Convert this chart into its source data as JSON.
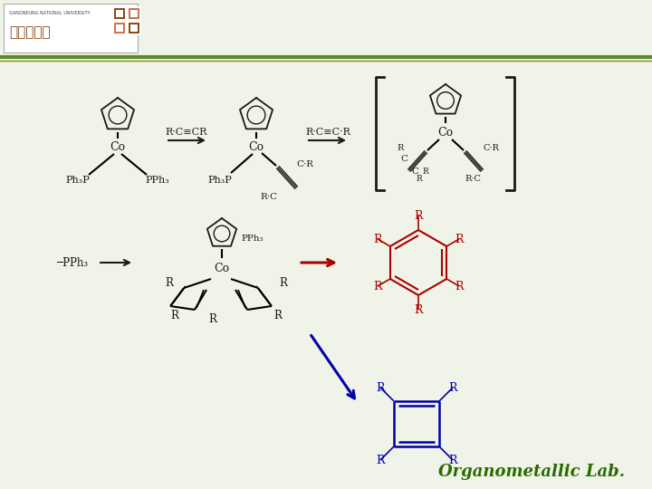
{
  "background_color": "#f0f4e8",
  "header_line_color1": "#5a8a2a",
  "header_line_color2": "#8a8a00",
  "title_text": "Organometallic Lab.",
  "title_color": "#2a6a00",
  "title_fontsize": 13,
  "logo_text": "강릉대학교",
  "logo_subtext": "GANGNEUNG NATIONAL UNIVERSITY",
  "logo_color": "#8B4513",
  "figsize": [
    7.2,
    5.4
  ],
  "dpi": 100,
  "black": "#1a1a1a",
  "red": "#aa0000",
  "blue": "#0000aa"
}
